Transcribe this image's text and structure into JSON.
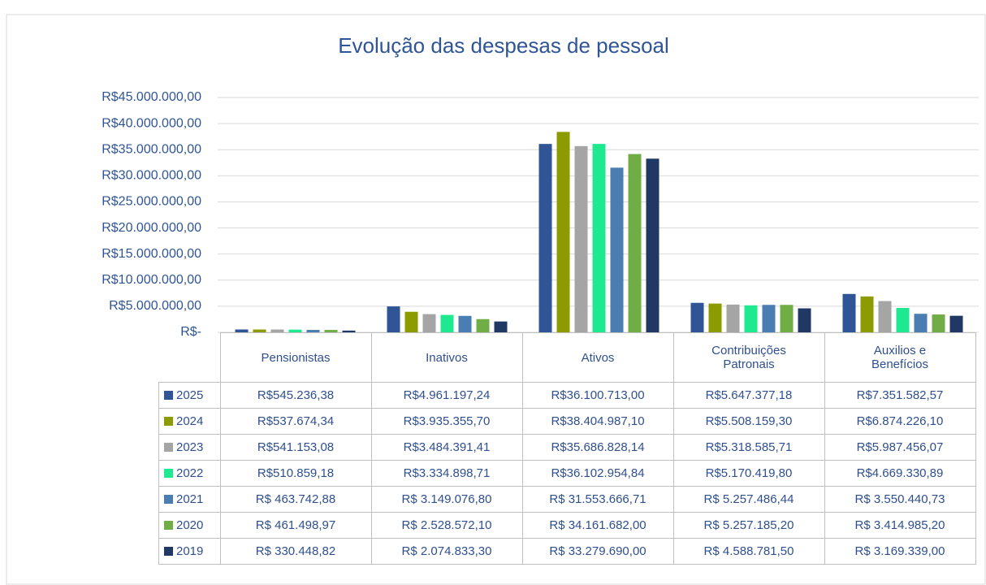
{
  "chart_data": {
    "type": "bar",
    "title": "Evolução das despesas de pessoal",
    "categories": [
      "Pensionistas",
      "Inativos",
      "Ativos",
      "Contribuições Patronais",
      "Auxilios e Benefícios"
    ],
    "series": [
      {
        "name": "2025",
        "color": "#2f5597",
        "values": [
          545236.38,
          4961197.24,
          36100713.0,
          5647377.18,
          7351582.57
        ],
        "value_labels": [
          "R$545.236,38",
          "R$4.961.197,24",
          "R$36.100.713,00",
          "R$5.647.377,18",
          "R$7.351.582,57"
        ]
      },
      {
        "name": "2024",
        "color": "#8c9b00",
        "values": [
          537674.34,
          3935355.7,
          38404987.1,
          5508159.3,
          6874226.1
        ],
        "value_labels": [
          "R$537.674,34",
          "R$3.935.355,70",
          "R$38.404.987,10",
          "R$5.508.159,30",
          "R$6.874.226,10"
        ]
      },
      {
        "name": "2023",
        "color": "#a5a5a5",
        "values": [
          541153.08,
          3484391.41,
          35686828.14,
          5318585.71,
          5987456.07
        ],
        "value_labels": [
          "R$541.153,08",
          "R$3.484.391,41",
          "R$35.686.828,14",
          "R$5.318.585,71",
          "R$5.987.456,07"
        ]
      },
      {
        "name": "2022",
        "color": "#1ee890",
        "values": [
          510859.18,
          3334898.71,
          36102954.84,
          5170419.8,
          4669330.89
        ],
        "value_labels": [
          "R$510.859,18",
          "R$3.334.898,71",
          "R$36.102.954,84",
          "R$5.170.419,80",
          "R$4.669.330,89"
        ]
      },
      {
        "name": "2021",
        "color": "#4a7eb3",
        "values": [
          463742.88,
          3149076.8,
          31553666.71,
          5257486.44,
          3550440.73
        ],
        "value_labels": [
          "R$ 463.742,88",
          "R$ 3.149.076,80",
          "R$ 31.553.666,71",
          "R$ 5.257.486,44",
          "R$ 3.550.440,73"
        ]
      },
      {
        "name": "2020",
        "color": "#70ad47",
        "values": [
          461498.97,
          2528572.1,
          34161682.0,
          5257185.2,
          3414985.2
        ],
        "value_labels": [
          "R$ 461.498,97",
          "R$ 2.528.572,10",
          "R$ 34.161.682,00",
          "R$ 5.257.185,20",
          "R$ 3.414.985,20"
        ]
      },
      {
        "name": "2019",
        "color": "#1f3864",
        "values": [
          330448.82,
          2074833.3,
          33279690.0,
          4588781.5,
          3169339.0
        ],
        "value_labels": [
          "R$ 330.448,82",
          "R$ 2.074.833,30",
          "R$ 33.279.690,00",
          "R$ 4.588.781,50",
          "R$ 3.169.339,00"
        ]
      }
    ],
    "ylim": [
      0,
      45000000
    ],
    "yticks": [
      {
        "value": 0,
        "label": "R$-"
      },
      {
        "value": 5000000,
        "label": "R$5.000.000,00"
      },
      {
        "value": 10000000,
        "label": "R$10.000.000,00"
      },
      {
        "value": 15000000,
        "label": "R$15.000.000,00"
      },
      {
        "value": 20000000,
        "label": "R$20.000.000,00"
      },
      {
        "value": 25000000,
        "label": "R$25.000.000,00"
      },
      {
        "value": 30000000,
        "label": "R$30.000.000,00"
      },
      {
        "value": 35000000,
        "label": "R$35.000.000,00"
      },
      {
        "value": 40000000,
        "label": "R$40.000.000,00"
      },
      {
        "value": 45000000,
        "label": "R$45.000.000,00"
      }
    ],
    "grid": true
  }
}
